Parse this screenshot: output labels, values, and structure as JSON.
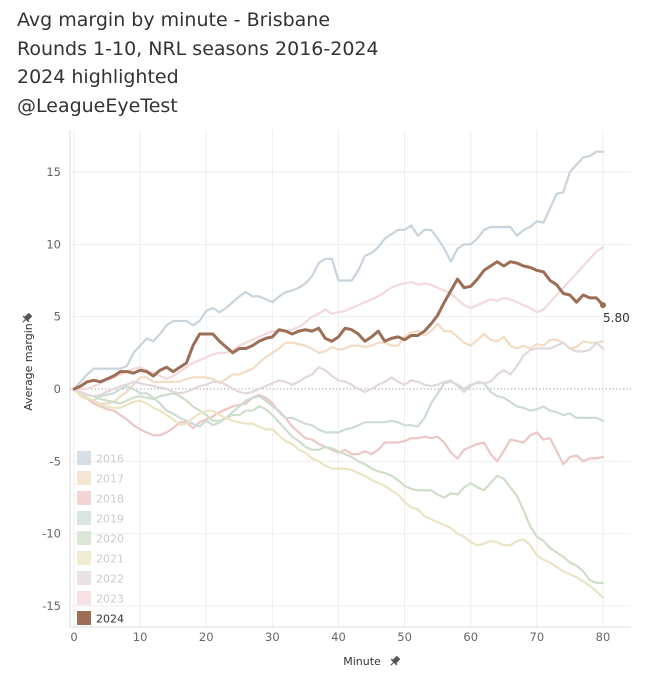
{
  "title_lines": [
    "Avg margin by minute - Brisbane",
    "Rounds 1-10, NRL seasons 2016-2024",
    "2024 highlighted",
    "@LeagueEyeTest"
  ],
  "chart_data": {
    "type": "line",
    "xlabel": "Minute",
    "ylabel": "Average margin",
    "xlim": [
      0,
      84
    ],
    "ylim": [
      -16,
      18
    ],
    "xticks": [
      0,
      10,
      20,
      30,
      40,
      50,
      60,
      70,
      80
    ],
    "yticks": [
      -15,
      -10,
      -5,
      0,
      5,
      10,
      15
    ],
    "x": [
      0,
      1,
      2,
      3,
      4,
      5,
      6,
      7,
      8,
      9,
      10,
      11,
      12,
      13,
      14,
      15,
      16,
      17,
      18,
      19,
      20,
      21,
      22,
      23,
      24,
      25,
      26,
      27,
      28,
      29,
      30,
      31,
      32,
      33,
      34,
      35,
      36,
      37,
      38,
      39,
      40,
      41,
      42,
      43,
      44,
      45,
      46,
      47,
      48,
      49,
      50,
      51,
      52,
      53,
      54,
      55,
      56,
      57,
      58,
      59,
      60,
      61,
      62,
      63,
      64,
      65,
      66,
      67,
      68,
      69,
      70,
      71,
      72,
      73,
      74,
      75,
      76,
      77,
      78,
      79,
      80
    ],
    "highlight": "2024",
    "end_label": "5.80",
    "legend_position": "bottom-left",
    "zero_line": true,
    "series": [
      {
        "name": "2016",
        "color": "#c9d3dc",
        "values": [
          0,
          0.5,
          1,
          1.4,
          1.4,
          1.4,
          1.4,
          1.4,
          1.6,
          2.5,
          3,
          3.5,
          3.3,
          3.8,
          4.4,
          4.7,
          4.7,
          4.7,
          4.4,
          4.7,
          5.4,
          5.6,
          5.3,
          5.6,
          6,
          6.4,
          6.7,
          6.4,
          6.4,
          6.2,
          6,
          6.4,
          6.7,
          6.8,
          7,
          7.3,
          7.8,
          8.7,
          9,
          9,
          7.5,
          7.5,
          7.5,
          8.2,
          9.2,
          9.4,
          9.8,
          10.4,
          10.7,
          11,
          11,
          11.3,
          10.6,
          11,
          11,
          10.4,
          9.7,
          8.8,
          9.7,
          10,
          10,
          10.4,
          11,
          11.2,
          11.2,
          11.2,
          11.2,
          10.6,
          11,
          11.2,
          11.6,
          11.5,
          12.5,
          13.5,
          13.6,
          15,
          15.5,
          16,
          16.1,
          16.4,
          16.4
        ]
      },
      {
        "name": "2017",
        "color": "#f2dcc4",
        "values": [
          0,
          -0.5,
          -0.7,
          -1,
          -1,
          -1,
          -0.9,
          -0.5,
          -0.2,
          0.3,
          0.8,
          0.8,
          0.5,
          0.5,
          0.5,
          0.5,
          0.5,
          0.7,
          0.8,
          0.8,
          0.8,
          0.7,
          0.4,
          0.7,
          1,
          1,
          1.2,
          1.4,
          1.8,
          2.2,
          2.5,
          2.8,
          3.2,
          3.2,
          3.1,
          3,
          2.8,
          2.5,
          2.6,
          2.9,
          2.7,
          2.8,
          3,
          3,
          2.9,
          3,
          3.2,
          3.2,
          3,
          3,
          3.6,
          3.9,
          4,
          3.7,
          4,
          4.5,
          4,
          4,
          3.6,
          3.2,
          3,
          3.4,
          3.8,
          3.4,
          3.3,
          3.6,
          3,
          2.8,
          3,
          2.8,
          3.1,
          3,
          3.4,
          3.4,
          3.2,
          2.8,
          2.9,
          3.3,
          3.2,
          3.2,
          3.3
        ]
      },
      {
        "name": "2018",
        "color": "#edc6c6",
        "values": [
          0,
          -0.3,
          -0.6,
          -1,
          -1.2,
          -1.4,
          -1.5,
          -1.8,
          -2.1,
          -2.5,
          -2.8,
          -3,
          -3.2,
          -3.2,
          -3,
          -2.7,
          -2.3,
          -2.3,
          -2.7,
          -2.3,
          -2.1,
          -1.9,
          -1.6,
          -1.4,
          -1.2,
          -1.1,
          -1,
          -0.6,
          -0.4,
          -0.6,
          -1,
          -1.6,
          -2,
          -2.6,
          -3,
          -3.4,
          -3.5,
          -3.8,
          -4,
          -4.2,
          -4.4,
          -4.2,
          -4.5,
          -4.5,
          -4.3,
          -4.5,
          -4.2,
          -3.7,
          -3.7,
          -3.7,
          -3.6,
          -3.4,
          -3.4,
          -3.3,
          -3.4,
          -3.3,
          -3.7,
          -4.4,
          -4.8,
          -4.2,
          -4,
          -3.8,
          -3.7,
          -4.5,
          -5,
          -4.3,
          -3.5,
          -3.6,
          -3.7,
          -3.2,
          -3,
          -3.5,
          -3.4,
          -4.3,
          -5.2,
          -4.7,
          -4.6,
          -5,
          -4.8,
          -4.8,
          -4.7
        ]
      },
      {
        "name": "2019",
        "color": "#cddbd5",
        "values": [
          0,
          -0.3,
          -0.6,
          -0.8,
          -0.5,
          -0.4,
          -0.3,
          0,
          0.2,
          0,
          -0.3,
          -0.3,
          -0.6,
          -1,
          -1.5,
          -1.7,
          -2,
          -2.2,
          -2.4,
          -2.6,
          -2.2,
          -2.5,
          -2.3,
          -2,
          -1.6,
          -1.2,
          -0.8,
          -0.6,
          -0.5,
          -0.8,
          -1.2,
          -1.5,
          -2,
          -2,
          -2.2,
          -2.4,
          -2.5,
          -2.8,
          -3,
          -3,
          -3,
          -2.8,
          -2.7,
          -2.5,
          -2.3,
          -2.3,
          -2.3,
          -2.3,
          -2.2,
          -2.3,
          -2.5,
          -2.5,
          -2.6,
          -2,
          -1,
          -0.3,
          0.4,
          0.5,
          0.3,
          0,
          0.3,
          0.4,
          0.4,
          -0.2,
          -0.5,
          -0.6,
          -0.9,
          -1.2,
          -1.3,
          -1.5,
          -1.4,
          -1.2,
          -1.5,
          -1.6,
          -1.8,
          -1.7,
          -2,
          -2,
          -2,
          -2,
          -2.2
        ]
      },
      {
        "name": "2020",
        "color": "#cfdec8",
        "values": [
          0,
          -0.2,
          -0.4,
          -0.5,
          -0.7,
          -0.8,
          -0.9,
          -1,
          -0.8,
          -0.6,
          -0.5,
          -0.6,
          -0.7,
          -0.5,
          -0.4,
          -0.3,
          -0.5,
          -0.8,
          -1.2,
          -1.5,
          -1.8,
          -2.2,
          -2.2,
          -2,
          -1.8,
          -1.8,
          -1.5,
          -1.5,
          -1.2,
          -1.4,
          -1.8,
          -2.3,
          -2.8,
          -3.3,
          -3.6,
          -4,
          -4.2,
          -4.2,
          -4,
          -4.1,
          -4.3,
          -4.5,
          -4.7,
          -5,
          -5.2,
          -5.5,
          -5.7,
          -5.8,
          -6,
          -6.3,
          -6.7,
          -6.9,
          -7,
          -7,
          -7,
          -7.3,
          -7.5,
          -7.2,
          -7.3,
          -6.8,
          -6.5,
          -6.8,
          -7,
          -6.5,
          -6,
          -6.2,
          -6.8,
          -7.4,
          -8.4,
          -9.5,
          -10.2,
          -10.5,
          -11,
          -11.3,
          -11.6,
          -12,
          -12.2,
          -12.6,
          -13.2,
          -13.4,
          -13.4
        ]
      },
      {
        "name": "2021",
        "color": "#ebe4c4",
        "values": [
          0,
          -0.4,
          -0.6,
          -0.8,
          -1.1,
          -1.2,
          -1.3,
          -1.3,
          -1.1,
          -0.9,
          -0.8,
          -1,
          -1.3,
          -1.5,
          -1.8,
          -2.1,
          -2.5,
          -2.4,
          -2,
          -1.7,
          -1.5,
          -1.5,
          -1.8,
          -2,
          -2.2,
          -2.3,
          -2.4,
          -2.4,
          -2.6,
          -2.8,
          -2.8,
          -3.2,
          -3.6,
          -3.8,
          -4.2,
          -4.4,
          -4.8,
          -5,
          -5.3,
          -5.5,
          -5.5,
          -5.5,
          -5.6,
          -5.8,
          -6,
          -6.3,
          -6.5,
          -6.7,
          -7,
          -7.3,
          -7.8,
          -8.2,
          -8.3,
          -8.8,
          -9,
          -9.2,
          -9.4,
          -9.6,
          -10,
          -10.2,
          -10.6,
          -10.8,
          -10.7,
          -10.5,
          -10.6,
          -10.8,
          -10.8,
          -10.5,
          -10.4,
          -10.8,
          -11.5,
          -11.8,
          -12,
          -12.3,
          -12.6,
          -12.8,
          -13,
          -13.3,
          -13.6,
          -14,
          -14.4
        ]
      },
      {
        "name": "2022",
        "color": "#e2d7dd",
        "values": [
          0,
          -0.2,
          -0.4,
          -0.5,
          -0.4,
          -0.2,
          0,
          0.2,
          0.3,
          0.5,
          0.4,
          0.3,
          0.2,
          0.1,
          0,
          -0.2,
          -0.3,
          -0.2,
          0,
          0.2,
          0.3,
          0.5,
          0.5,
          0.3,
          0,
          -0.2,
          -0.3,
          -0.2,
          0,
          0.2,
          0.4,
          0.6,
          0.5,
          0.3,
          0.5,
          0.8,
          1,
          1.5,
          1.3,
          0.9,
          0.6,
          0.5,
          0.3,
          0,
          -0.2,
          0,
          0.3,
          0.5,
          0.8,
          0.5,
          0.3,
          0.6,
          0.5,
          0.3,
          0.2,
          0.3,
          0.5,
          0.6,
          0.2,
          -0.2,
          0.2,
          0.5,
          0.4,
          0.5,
          1,
          1.3,
          1,
          1.6,
          2.3,
          2.7,
          2.8,
          2.8,
          2.8,
          3,
          3.2,
          2.8,
          2.6,
          2.6,
          2.7,
          3.2,
          2.8
        ]
      },
      {
        "name": "2023",
        "color": "#f3d8dc",
        "values": [
          0,
          0,
          0,
          0.2,
          0.4,
          0.6,
          0.8,
          1,
          1.2,
          1.4,
          1.5,
          1.3,
          1.1,
          0.9,
          0.7,
          0.9,
          1.2,
          1.5,
          1.8,
          2,
          2.2,
          2.4,
          2.5,
          2.5,
          2.7,
          3,
          3.2,
          3.4,
          3.6,
          3.8,
          4,
          4,
          4,
          4.1,
          4.3,
          4.6,
          5,
          5.2,
          5.5,
          5.2,
          5.3,
          5.4,
          5.6,
          5.8,
          6,
          6.2,
          6.4,
          6.7,
          7,
          7.2,
          7.3,
          7.4,
          7.2,
          7.3,
          7.2,
          7,
          6.8,
          6.6,
          6.2,
          5.8,
          5.6,
          5.8,
          6,
          6.2,
          6.1,
          6.3,
          6.2,
          6,
          5.8,
          5.6,
          5.3,
          5.5,
          6,
          6.5,
          7,
          7.5,
          8,
          8.5,
          9,
          9.5,
          9.8
        ]
      },
      {
        "name": "2024",
        "color": "#9b6e55",
        "values": [
          0,
          0.2,
          0.5,
          0.6,
          0.5,
          0.7,
          0.9,
          1.2,
          1.2,
          1.1,
          1.3,
          1.2,
          0.9,
          1.3,
          1.5,
          1.2,
          1.5,
          1.8,
          3,
          3.8,
          3.8,
          3.8,
          3.3,
          2.9,
          2.5,
          2.8,
          2.8,
          3,
          3.3,
          3.5,
          3.6,
          4.1,
          4,
          3.8,
          4,
          4.1,
          4,
          4.2,
          3.5,
          3.3,
          3.6,
          4.2,
          4.1,
          3.8,
          3.3,
          3.6,
          4,
          3.3,
          3.5,
          3.6,
          3.4,
          3.7,
          3.7,
          4,
          4.5,
          5.1,
          6,
          6.8,
          7.6,
          7,
          7.1,
          7.6,
          8.2,
          8.5,
          8.8,
          8.5,
          8.8,
          8.7,
          8.5,
          8.4,
          8.2,
          8.1,
          7.5,
          7.2,
          6.6,
          6.5,
          6,
          6.5,
          6.3,
          6.3,
          5.8
        ]
      }
    ]
  }
}
